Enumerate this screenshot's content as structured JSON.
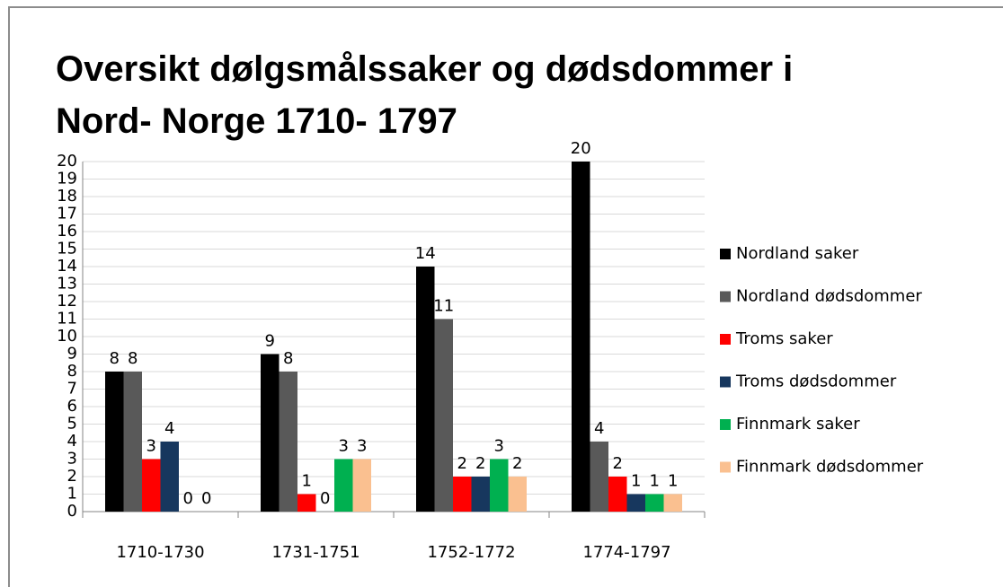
{
  "chart_data": {
    "type": "bar",
    "title": "Oversikt dølgsmålssaker og dødsdommer i Nord- Norge 1710- 1797",
    "categories": [
      "1710-1730",
      "1731-1751",
      "1752-1772",
      "1774-1797"
    ],
    "series": [
      {
        "name": "Nordland saker",
        "color": "#000000",
        "values": [
          8,
          9,
          14,
          20
        ]
      },
      {
        "name": "Nordland dødsdommer",
        "color": "#595959",
        "values": [
          8,
          8,
          11,
          4
        ]
      },
      {
        "name": "Troms saker",
        "color": "#ff0000",
        "values": [
          3,
          1,
          2,
          2
        ]
      },
      {
        "name": "Troms dødsdommer",
        "color": "#17375e",
        "values": [
          4,
          0,
          2,
          1
        ]
      },
      {
        "name": "Finnmark saker",
        "color": "#00b050",
        "values": [
          0,
          3,
          3,
          1
        ]
      },
      {
        "name": "Finnmark dødsdommer",
        "color": "#fac090",
        "values": [
          0,
          3,
          2,
          1
        ]
      }
    ],
    "ylim": [
      0,
      20
    ],
    "yticks": [
      0,
      1,
      2,
      3,
      4,
      5,
      6,
      7,
      8,
      9,
      10,
      11,
      12,
      13,
      14,
      15,
      16,
      17,
      18,
      19,
      20
    ],
    "grid": true,
    "legend": "right",
    "data_labels": true
  }
}
